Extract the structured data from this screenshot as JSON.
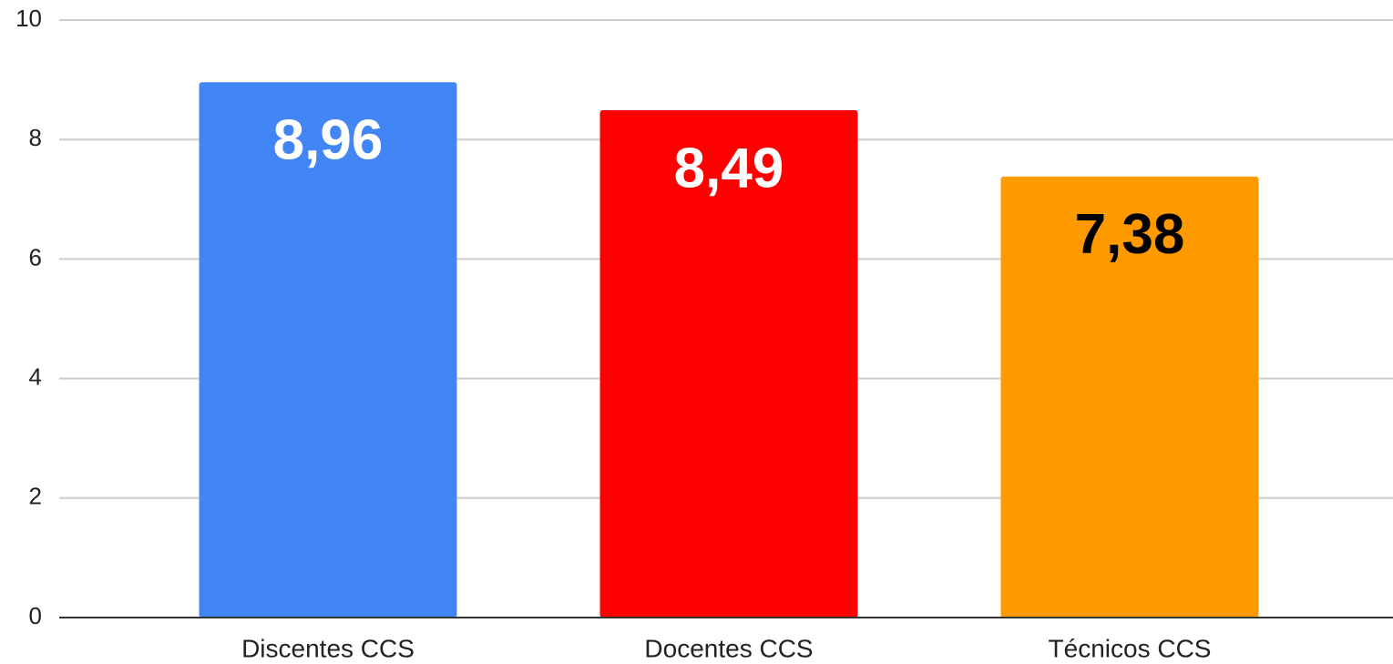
{
  "chart_data": {
    "type": "bar",
    "categories": [
      "Discentes CCS",
      "Docentes CCS",
      "Técnicos CCS"
    ],
    "values": [
      8.96,
      8.49,
      7.38
    ],
    "value_labels": [
      "8,96",
      "8,49",
      "7,38"
    ],
    "colors": [
      "#4285f4",
      "#ff0000",
      "#ff9900"
    ],
    "value_label_colors": [
      "#ffffff",
      "#ffffff",
      "#000000"
    ],
    "ylim": [
      0,
      10
    ],
    "yticks": [
      0,
      2,
      4,
      6,
      8,
      10
    ],
    "grid": true
  }
}
